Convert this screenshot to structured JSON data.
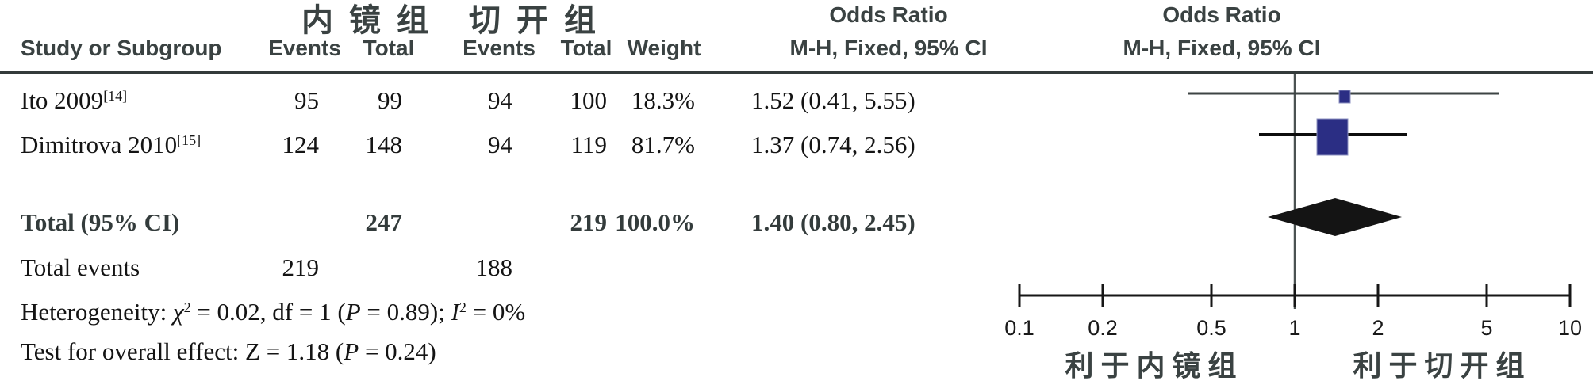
{
  "colors": {
    "header_text": "#3a4242",
    "body_text": "#141414",
    "square_blue": "#2b2e84",
    "study1_ci_line": "#3d4444",
    "study2_ci_line": "#0d0d0d",
    "diamond": "#141414",
    "axis": "#161616",
    "rule": "#343b3b"
  },
  "header": {
    "group1": "内镜组",
    "group2": "切开组",
    "col_study": "Study or Subgroup",
    "col_events": "Events",
    "col_total": "Total",
    "col_weight": "Weight",
    "or_title_left": "Odds Ratio",
    "or_sub_left": "M-H, Fixed, 95% CI",
    "or_title_right": "Odds Ratio",
    "or_sub_right": "M-H, Fixed, 95% CI"
  },
  "chart_data": {
    "type": "forest",
    "effect_measure": "Odds Ratio",
    "method": "M-H, Fixed, 95% CI",
    "x_axis": {
      "scale": "log",
      "range": [
        0.1,
        10
      ],
      "ticks": [
        0.1,
        0.2,
        0.5,
        1,
        2,
        5,
        10
      ]
    },
    "studies": [
      {
        "label_parts": [
          {
            "t": "Ito 2009"
          },
          {
            "t": "[14]",
            "s": "sup"
          }
        ],
        "events1": 95,
        "total1": 99,
        "events2": 94,
        "total2": 100,
        "weight": "18.3%",
        "or_text": "1.52 (0.41, 5.55)",
        "or": 1.52,
        "ci_low": 0.41,
        "ci_high": 5.55
      },
      {
        "label_parts": [
          {
            "t": "Dimitrova 2010"
          },
          {
            "t": "[15]",
            "s": "sup"
          }
        ],
        "events1": 124,
        "total1": 148,
        "events2": 94,
        "total2": 119,
        "weight": "81.7%",
        "or_text": "1.37 (0.74, 2.56)",
        "or": 1.37,
        "ci_low": 0.74,
        "ci_high": 2.56
      }
    ],
    "total": {
      "label": "Total (95% CI)",
      "total1": 247,
      "total2": 219,
      "weight": "100.0%",
      "or_text": "1.40 (0.80, 2.45)",
      "or": 1.4,
      "ci_low": 0.8,
      "ci_high": 2.45
    },
    "total_events": {
      "label": "Total events",
      "events1": 219,
      "events2": 188
    },
    "heterogeneity_parts": [
      {
        "t": "Heterogeneity: "
      },
      {
        "t": "χ",
        "s": "i"
      },
      {
        "t": "2",
        "s": "sup"
      },
      {
        "t": " = 0.02, df = 1 ("
      },
      {
        "t": "P",
        "s": "i"
      },
      {
        "t": " = 0.89); "
      },
      {
        "t": "I",
        "s": "i"
      },
      {
        "t": "2",
        "s": "sup"
      },
      {
        "t": " = 0%"
      }
    ],
    "overall_effect_parts": [
      {
        "t": "Test for overall effect: Z = 1.18 ("
      },
      {
        "t": "P",
        "s": "i"
      },
      {
        "t": " = 0.24)"
      }
    ],
    "favors_left": "利于内镜组",
    "favors_right": "利于切开组"
  }
}
